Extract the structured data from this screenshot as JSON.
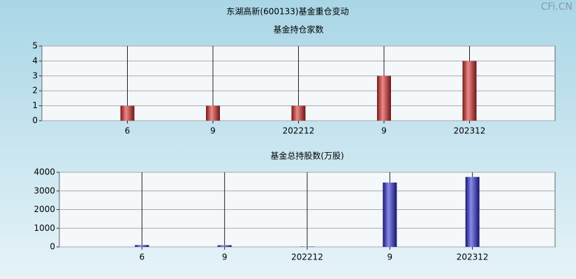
{
  "title": "东湖高新(600133)基金重仓变动",
  "watermark": "CFi.CN",
  "chart_data": [
    {
      "type": "bar",
      "title": "基金持仓家数",
      "categories": [
        "6",
        "9",
        "202212",
        "9",
        "202312"
      ],
      "values": [
        1,
        1,
        1,
        3,
        4
      ],
      "color": "#e02828",
      "ylim": [
        0,
        5
      ],
      "yticks": [
        0,
        1,
        2,
        3,
        4,
        5
      ],
      "grid": true
    },
    {
      "type": "bar",
      "title": "基金总持股数(万股)",
      "categories": [
        "6",
        "9",
        "202212",
        "9",
        "202312"
      ],
      "values": [
        100,
        90,
        20,
        3450,
        3750
      ],
      "color": "#2828d8",
      "ylim": [
        0,
        4000
      ],
      "yticks": [
        0,
        1000,
        2000,
        3000,
        4000
      ],
      "grid": true
    }
  ]
}
